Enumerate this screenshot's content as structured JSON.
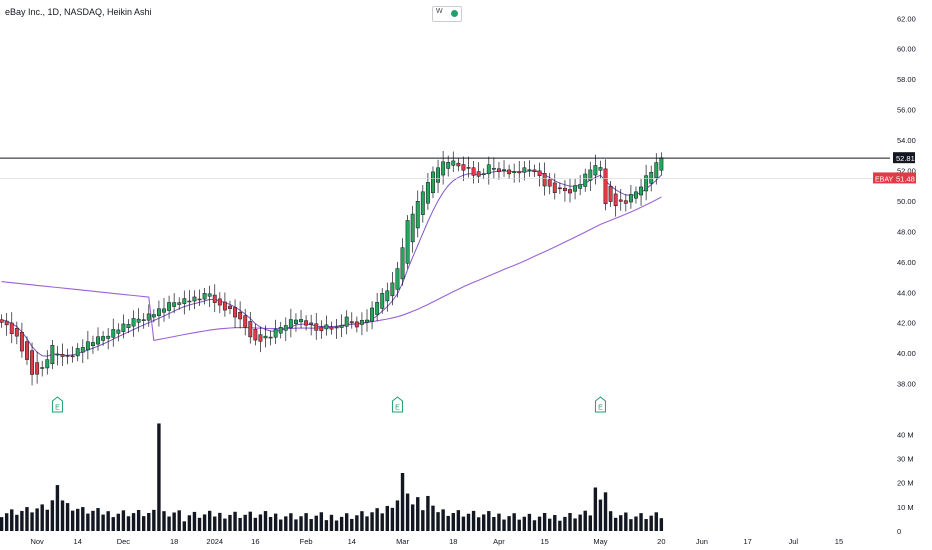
{
  "header": {
    "title": "eBay Inc., 1D, NASDAQ, Heikin Ashi",
    "toggle_label": "W"
  },
  "chart_data": {
    "type": "candlestick",
    "ylim": [
      36.4,
      63.2
    ],
    "volume_ylim": [
      0,
      48
    ],
    "y_ticks": [
      "62.00",
      "60.00",
      "58.00",
      "56.00",
      "54.00",
      "52.00",
      "50.00",
      "48.00",
      "46.00",
      "44.00",
      "42.00",
      "40.00",
      "38.00"
    ],
    "volume_ticks": [
      "40 M",
      "30 M",
      "20 M",
      "10 M",
      "0"
    ],
    "x_ticks": [
      {
        "label": "Nov",
        "bar": 7
      },
      {
        "label": "14",
        "bar": 15
      },
      {
        "label": "Dec",
        "bar": 24
      },
      {
        "label": "18",
        "bar": 34
      },
      {
        "label": "2024",
        "bar": 42
      },
      {
        "label": "16",
        "bar": 50
      },
      {
        "label": "Feb",
        "bar": 60
      },
      {
        "label": "14",
        "bar": 69
      },
      {
        "label": "Mar",
        "bar": 79
      },
      {
        "label": "18",
        "bar": 89
      },
      {
        "label": "Apr",
        "bar": 98
      },
      {
        "label": "15",
        "bar": 107
      },
      {
        "label": "May",
        "bar": 118
      },
      {
        "label": "20",
        "bar": 130
      },
      {
        "label": "Jun",
        "bar": 138
      },
      {
        "label": "17",
        "bar": 147
      },
      {
        "label": "Jul",
        "bar": 156
      },
      {
        "label": "15",
        "bar": 165
      }
    ],
    "horizontal_line": {
      "value": 52.81,
      "label": "52.81"
    },
    "price_tag": {
      "symbol": "EBAY",
      "value": 51.48,
      "label": "51.48"
    },
    "earnings_markers": [
      {
        "bar": 11,
        "label": "E"
      },
      {
        "bar": 78,
        "label": "E"
      },
      {
        "bar": 118,
        "label": "E"
      }
    ],
    "ma_fast_color": "#7e57c2",
    "ma_slow_color": "#9c62d8",
    "up_color": "#26a65b",
    "down_color": "#e03b46",
    "close_anchors": [
      [
        0,
        42.2
      ],
      [
        3,
        41.0
      ],
      [
        6,
        38.6
      ],
      [
        8,
        39.0
      ],
      [
        10,
        40.4
      ],
      [
        12,
        39.6
      ],
      [
        14,
        40.0
      ],
      [
        16,
        40.5
      ],
      [
        19,
        40.9
      ],
      [
        22,
        41.5
      ],
      [
        26,
        42.1
      ],
      [
        31,
        42.8
      ],
      [
        35,
        43.5
      ],
      [
        39,
        43.6
      ],
      [
        41,
        43.9
      ],
      [
        43,
        43.1
      ],
      [
        45,
        42.8
      ],
      [
        48,
        41.7
      ],
      [
        50,
        40.8
      ],
      [
        53,
        41.1
      ],
      [
        56,
        42.0
      ],
      [
        58,
        42.3
      ],
      [
        60,
        41.9
      ],
      [
        62,
        41.5
      ],
      [
        64,
        41.8
      ],
      [
        66,
        41.6
      ],
      [
        68,
        42.2
      ],
      [
        70,
        41.9
      ],
      [
        72,
        42.3
      ],
      [
        74,
        43.4
      ],
      [
        76,
        44.1
      ],
      [
        78,
        45.5
      ],
      [
        80,
        48.6
      ],
      [
        82,
        49.8
      ],
      [
        84,
        51.4
      ],
      [
        86,
        52.3
      ],
      [
        88,
        52.6
      ],
      [
        90,
        52.3
      ],
      [
        92,
        52.1
      ],
      [
        94,
        51.5
      ],
      [
        96,
        52.2
      ],
      [
        98,
        52.1
      ],
      [
        101,
        51.8
      ],
      [
        103,
        52.0
      ],
      [
        105,
        52.1
      ],
      [
        107,
        51.1
      ],
      [
        109,
        50.6
      ],
      [
        112,
        50.7
      ],
      [
        114,
        51.2
      ],
      [
        116,
        52.1
      ],
      [
        118,
        52.2
      ],
      [
        119,
        50.0
      ],
      [
        121,
        49.8
      ],
      [
        123,
        49.9
      ],
      [
        125,
        50.6
      ],
      [
        127,
        51.6
      ],
      [
        129,
        52.4
      ],
      [
        130,
        52.9
      ]
    ],
    "volume_anchors": [
      [
        0,
        7.5
      ],
      [
        5,
        8.5
      ],
      [
        9,
        9.5
      ],
      [
        11,
        14.5
      ],
      [
        12,
        13.0
      ],
      [
        13,
        10.5
      ],
      [
        16,
        8.5
      ],
      [
        20,
        7.5
      ],
      [
        25,
        7.5
      ],
      [
        30,
        7.0
      ],
      [
        34,
        8.0
      ],
      [
        37,
        6.5
      ],
      [
        40,
        6.5
      ],
      [
        45,
        7.0
      ],
      [
        50,
        6.5
      ],
      [
        55,
        6.5
      ],
      [
        60,
        6.0
      ],
      [
        65,
        6.0
      ],
      [
        70,
        6.5
      ],
      [
        75,
        8.0
      ],
      [
        78,
        13.0
      ],
      [
        81,
        11.0
      ],
      [
        84,
        9.0
      ],
      [
        88,
        8.0
      ],
      [
        95,
        6.5
      ],
      [
        100,
        6.5
      ],
      [
        105,
        5.5
      ],
      [
        110,
        6.0
      ],
      [
        115,
        7.0
      ],
      [
        118,
        8.5
      ],
      [
        120,
        7.5
      ],
      [
        125,
        6.0
      ],
      [
        130,
        6.0
      ]
    ],
    "volume_spikes": [
      [
        11,
        19.0
      ],
      [
        31,
        44.5
      ],
      [
        36,
        4.0
      ],
      [
        64,
        4.5
      ],
      [
        79,
        24.0
      ],
      [
        80,
        15.5
      ],
      [
        82,
        14.0
      ],
      [
        84,
        14.5
      ],
      [
        117,
        18.0
      ],
      [
        118,
        13.0
      ],
      [
        119,
        16.0
      ]
    ]
  }
}
